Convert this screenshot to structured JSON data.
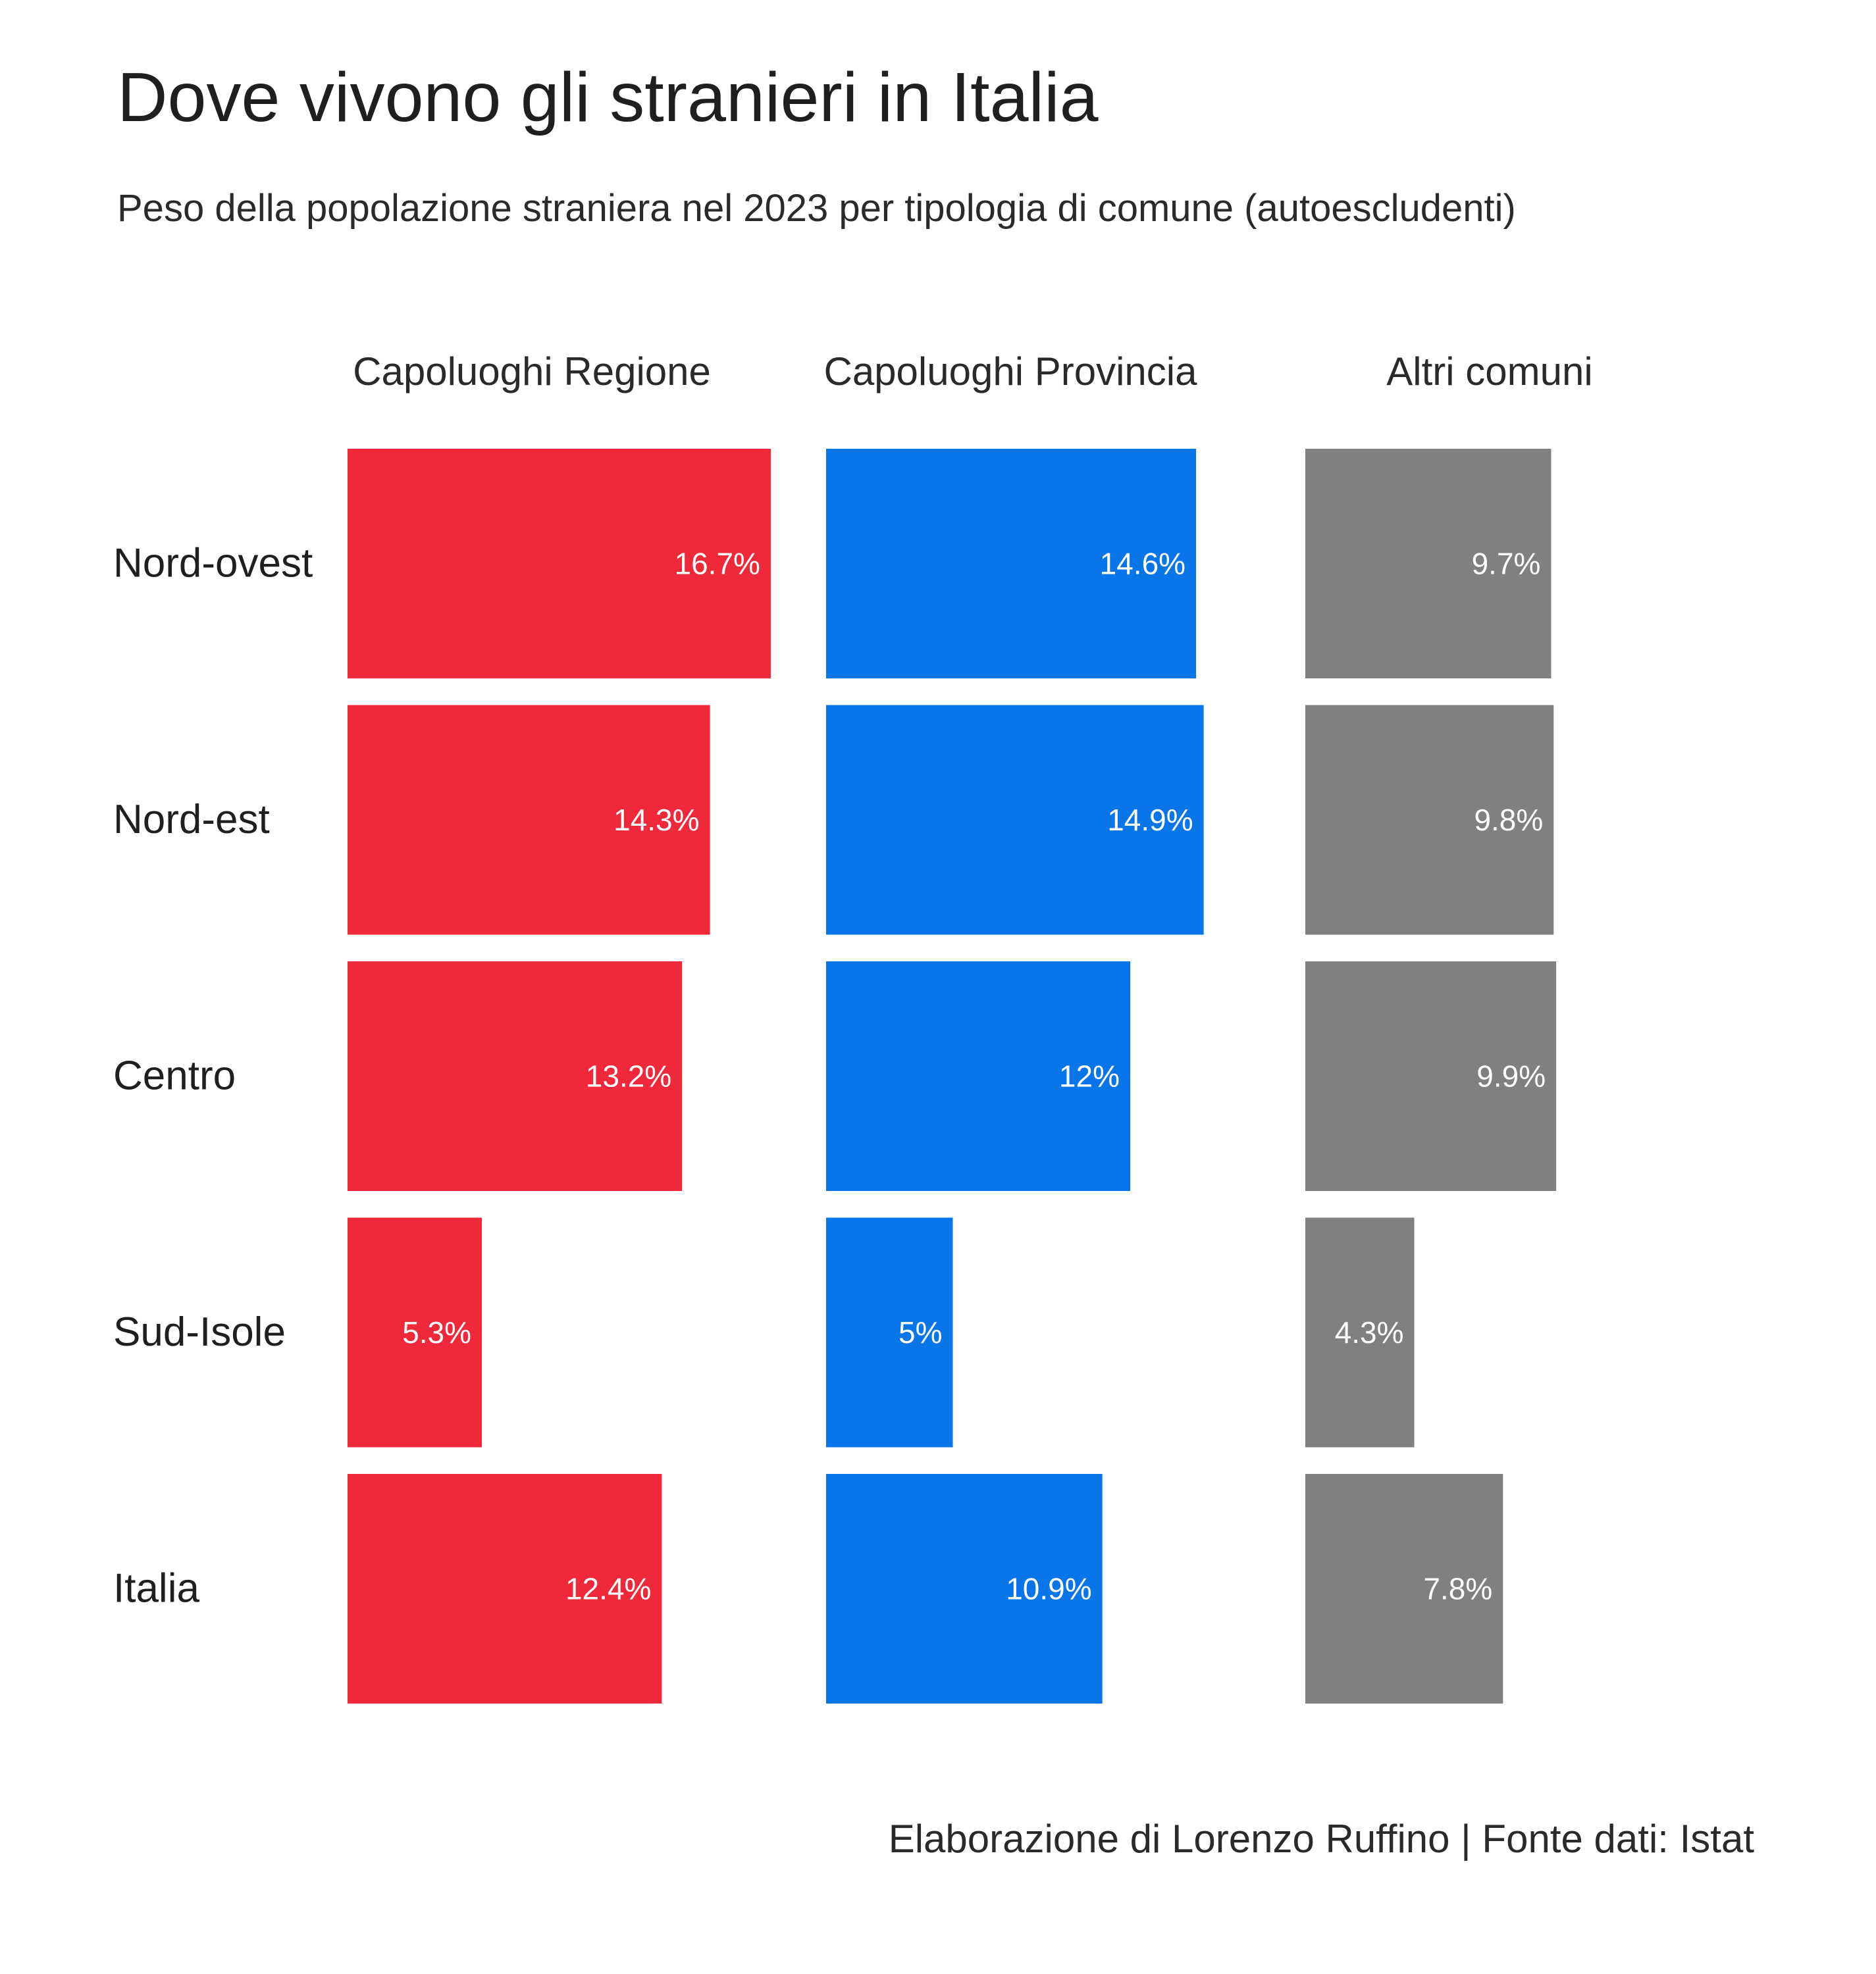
{
  "chart_data": {
    "type": "bar",
    "title": "Dove vivono gli stranieri in Italia",
    "subtitle": "Peso della popolazione straniera nel 2023 per tipologia di comune (autoescludenti)",
    "caption": "Elaborazione di Lorenzo Ruffino | Fonte dati: Istat",
    "orientation": "horizontal",
    "layout": "small-multiples",
    "categories": [
      "Nord-ovest",
      "Nord-est",
      "Centro",
      "Sud-Isole",
      "Italia"
    ],
    "series": [
      {
        "name": "Capoluoghi Regione",
        "color": "#f0293a",
        "values": [
          16.7,
          14.3,
          13.2,
          5.3,
          12.4
        ],
        "labels": [
          "16.7%",
          "14.3%",
          "13.2%",
          "5.3%",
          "12.4%"
        ]
      },
      {
        "name": "Capoluoghi Provincia",
        "color": "#0875e8",
        "values": [
          14.6,
          14.9,
          12,
          5,
          10.9
        ],
        "labels": [
          "14.6%",
          "14.9%",
          "12%",
          "5%",
          "10.9%"
        ]
      },
      {
        "name": "Altri comuni",
        "color": "#808080",
        "values": [
          9.7,
          9.8,
          9.9,
          4.3,
          7.8
        ],
        "labels": [
          "9.7%",
          "9.8%",
          "9.9%",
          "4.3%",
          "7.8%"
        ]
      }
    ],
    "unit": "%",
    "grid": false,
    "legend": "none"
  }
}
